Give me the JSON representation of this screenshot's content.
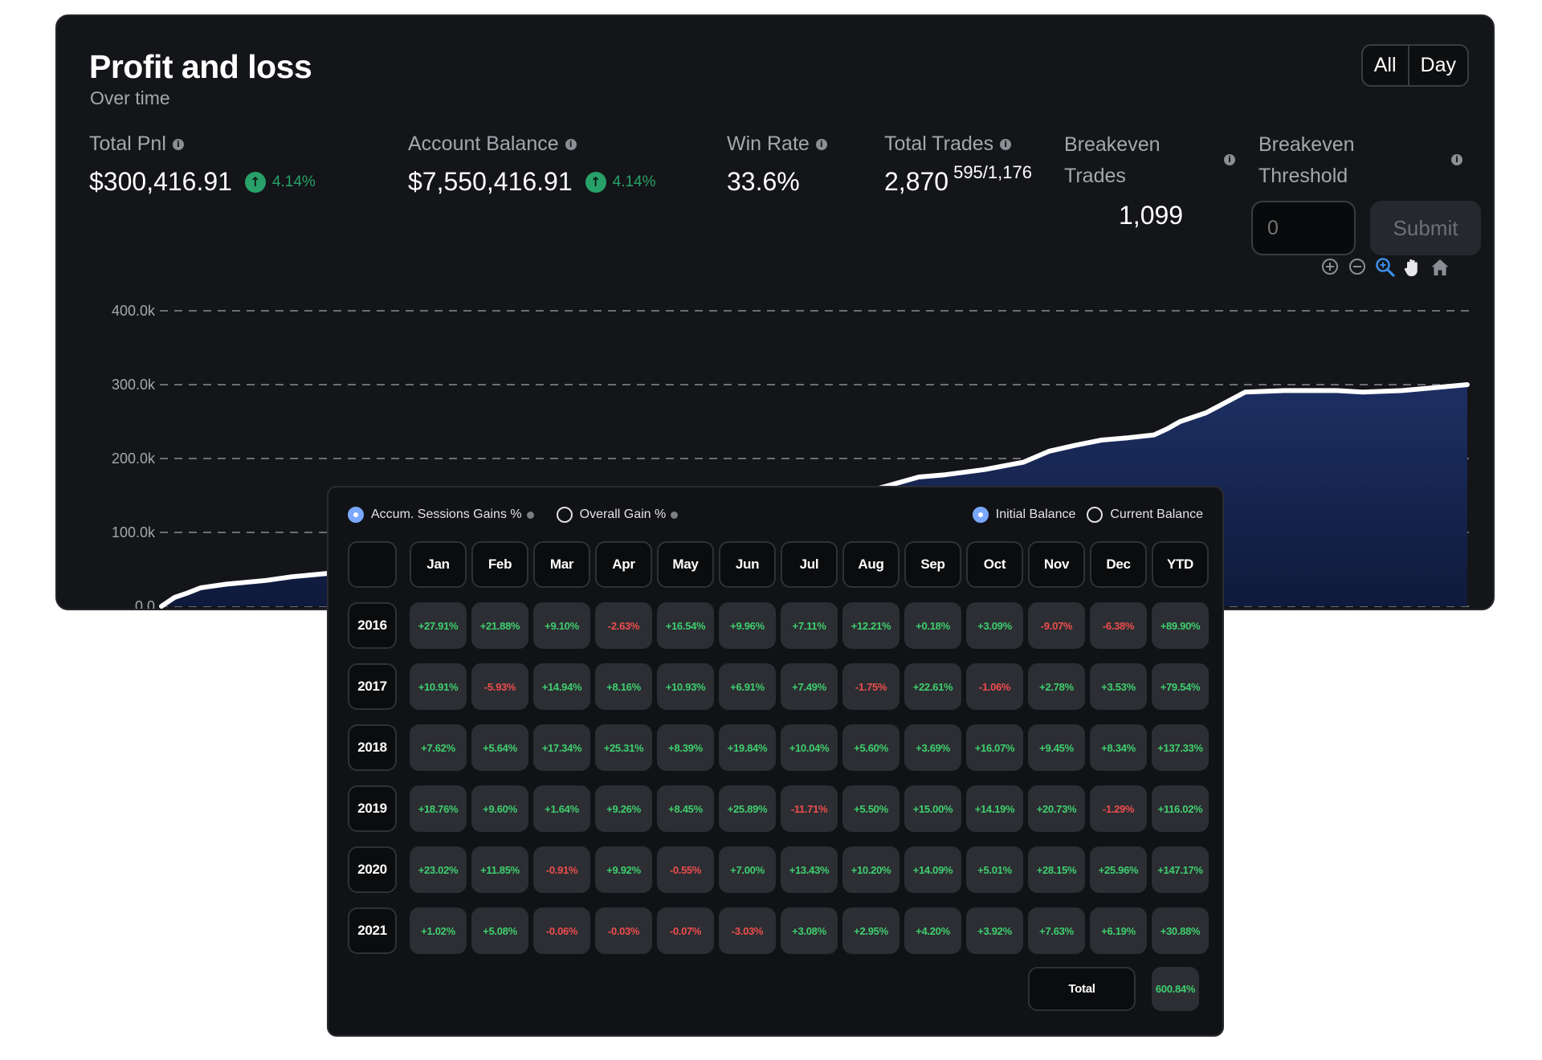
{
  "header": {
    "title": "Profit and loss",
    "subtitle": "Over time"
  },
  "range_toggle": {
    "all": "All",
    "day": "Day"
  },
  "stats": {
    "total_pnl": {
      "label": "Total Pnl",
      "value": "$300,416.91",
      "change": "4.14%"
    },
    "account_balance": {
      "label": "Account Balance",
      "value": "$7,550,416.91",
      "change": "4.14%"
    },
    "win_rate": {
      "label": "Win Rate",
      "value": "33.6%"
    },
    "total_trades": {
      "label": "Total Trades",
      "value": "2,870",
      "ratio": "595/1,176"
    },
    "breakeven_trades": {
      "label_line1": "Breakeven",
      "label_line2": "Trades",
      "value": "1,099"
    },
    "breakeven_threshold": {
      "label_line1": "Breakeven",
      "label_line2": "Threshold",
      "placeholder": "0",
      "submit": "Submit"
    }
  },
  "chart_tools": [
    "zoom-in-icon",
    "zoom-out-icon",
    "selection-zoom-icon",
    "pan-hand-icon",
    "reset-home-icon"
  ],
  "chart_data": {
    "type": "area",
    "title": "",
    "xlabel": "",
    "ylabel": "",
    "y_ticks": [
      "400.0k",
      "300.0k",
      "200.0k",
      "100.0k",
      "0.0"
    ],
    "ylim": [
      0,
      400000
    ],
    "grid": "dashed horizontal",
    "x": [
      0,
      1,
      2,
      3,
      5,
      8,
      10,
      13,
      14,
      17,
      20,
      28,
      33,
      40,
      45,
      50,
      52,
      55,
      58,
      60,
      63,
      66,
      68,
      70,
      72,
      74,
      76,
      77,
      78,
      80,
      83,
      86,
      90,
      92,
      95,
      100
    ],
    "y": [
      0,
      12000,
      18000,
      25000,
      30000,
      35000,
      40000,
      45000,
      50000,
      58000,
      62000,
      78000,
      95000,
      116000,
      135000,
      145000,
      150000,
      160000,
      175000,
      178000,
      185000,
      195000,
      210000,
      218000,
      225000,
      228000,
      232000,
      240000,
      250000,
      262000,
      290000,
      292000,
      292000,
      290000,
      292000,
      300000
    ],
    "colors": {
      "line": "#ffffff",
      "fill_top": "#1d2f63",
      "fill_bottom": "#0f1a3b",
      "grid": "#6c6e74",
      "axis_text": "#a5a7ad"
    }
  },
  "returns": {
    "options_left": [
      {
        "label": "Accum. Sessions Gains %",
        "selected": true
      },
      {
        "label": "Overall Gain %",
        "selected": false
      }
    ],
    "options_right": [
      {
        "label": "Initial Balance",
        "selected": true
      },
      {
        "label": "Current Balance",
        "selected": false
      }
    ],
    "columns": [
      "Jan",
      "Feb",
      "Mar",
      "Apr",
      "May",
      "Jun",
      "Jul",
      "Aug",
      "Sep",
      "Oct",
      "Nov",
      "Dec",
      "YTD"
    ],
    "rows": [
      {
        "year": "2016",
        "values": [
          "+27.91%",
          "+21.88%",
          "+9.10%",
          "-2.63%",
          "+16.54%",
          "+9.96%",
          "+7.11%",
          "+12.21%",
          "+0.18%",
          "+3.09%",
          "-9.07%",
          "-6.38%",
          "+89.90%"
        ]
      },
      {
        "year": "2017",
        "values": [
          "+10.91%",
          "-5.93%",
          "+14.94%",
          "+8.16%",
          "+10.93%",
          "+6.91%",
          "+7.49%",
          "-1.75%",
          "+22.61%",
          "-1.06%",
          "+2.78%",
          "+3.53%",
          "+79.54%"
        ]
      },
      {
        "year": "2018",
        "values": [
          "+7.62%",
          "+5.64%",
          "+17.34%",
          "+25.31%",
          "+8.39%",
          "+19.84%",
          "+10.04%",
          "+5.60%",
          "+3.69%",
          "+16.07%",
          "+9.45%",
          "+8.34%",
          "+137.33%"
        ]
      },
      {
        "year": "2019",
        "values": [
          "+18.76%",
          "+9.60%",
          "+1.64%",
          "+9.26%",
          "+8.45%",
          "+25.89%",
          "-11.71%",
          "+5.50%",
          "+15.00%",
          "+14.19%",
          "+20.73%",
          "-1.29%",
          "+116.02%"
        ]
      },
      {
        "year": "2020",
        "values": [
          "+23.02%",
          "+11.85%",
          "-0.91%",
          "+9.92%",
          "-0.55%",
          "+7.00%",
          "+13.43%",
          "+10.20%",
          "+14.09%",
          "+5.01%",
          "+28.15%",
          "+25.96%",
          "+147.17%"
        ]
      },
      {
        "year": "2021",
        "values": [
          "+1.02%",
          "+5.08%",
          "-0.06%",
          "-0.03%",
          "-0.07%",
          "-3.03%",
          "+3.08%",
          "+2.95%",
          "+4.20%",
          "+3.92%",
          "+7.63%",
          "+6.19%",
          "+30.88%"
        ]
      }
    ],
    "total": {
      "label": "Total",
      "value": "600.84%"
    }
  }
}
